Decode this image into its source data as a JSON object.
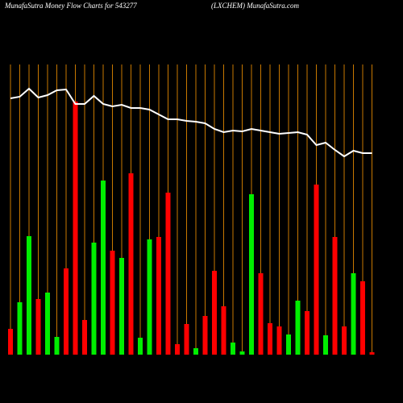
{
  "chart_data": {
    "type": "bar",
    "title": "MunafaSutra  Money Flow  Charts for 543277",
    "subtitle": "(LXCHEM) MunafaSutra.com",
    "ylim": [
      0,
      360
    ],
    "series": [
      {
        "name": "Money Flow",
        "colors": [
          "red",
          "green",
          "green",
          "red",
          "green",
          "green",
          "red",
          "red",
          "red",
          "green",
          "green",
          "red",
          "green",
          "red",
          "green",
          "green",
          "red",
          "red",
          "red",
          "red",
          "green",
          "red",
          "red",
          "red",
          "green",
          "green",
          "green",
          "red",
          "red",
          "red",
          "green",
          "green",
          "red",
          "red",
          "green",
          "red",
          "red",
          "green",
          "red",
          "red"
        ],
        "values": [
          32,
          65,
          147,
          69,
          77,
          22,
          107,
          314,
          43,
          139,
          216,
          129,
          120,
          225,
          21,
          143,
          146,
          201,
          13,
          38,
          8,
          48,
          104,
          60,
          15,
          4,
          199,
          101,
          39,
          35,
          25,
          67,
          54,
          211,
          24,
          146,
          35,
          101,
          91,
          3
        ]
      },
      {
        "name": "Price",
        "color": "white",
        "values": [
          318,
          320,
          330,
          319,
          322,
          328,
          329,
          311,
          311,
          321,
          311,
          308,
          310,
          306,
          306,
          304,
          298,
          292,
          292,
          290,
          289,
          287,
          280,
          276,
          278,
          277,
          280,
          278,
          276,
          274,
          275,
          276,
          273,
          260,
          263,
          254,
          246,
          253,
          250,
          250
        ]
      }
    ]
  }
}
